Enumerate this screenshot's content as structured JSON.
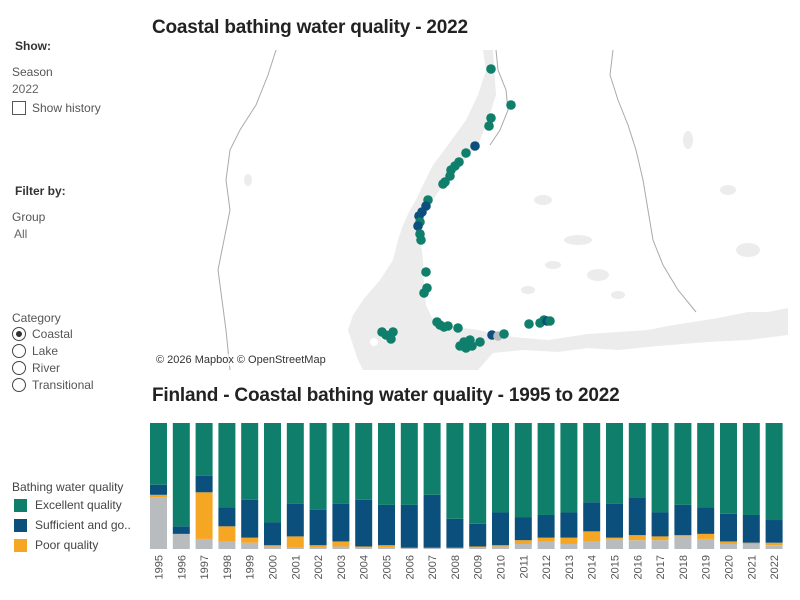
{
  "sidebar": {
    "show_header": "Show:",
    "season_label": "Season",
    "season_value": "2022",
    "show_history_label": "Show history",
    "filter_header": "Filter by:",
    "group_label": "Group",
    "group_value": "All",
    "category_label": "Category",
    "categories": [
      "Coastal",
      "Lake",
      "River",
      "Transitional"
    ],
    "selected_category": "Coastal",
    "legend_title": "Bathing water quality",
    "legend": [
      {
        "label": "Excellent quality",
        "color": "#0f7f6b"
      },
      {
        "label": "Sufficient and go..",
        "color": "#0b4f7c"
      },
      {
        "label": "Poor quality",
        "color": "#f5a623"
      }
    ]
  },
  "map": {
    "title": "Coastal bathing water quality - 2022",
    "attribution": "© 2026 Mapbox © OpenStreetMap",
    "colors": {
      "excellent": "#0f7f6b",
      "sufficient": "#0b4f7c",
      "unknown": "#b9bcbe",
      "land": "#ffffff",
      "water": "#ececec",
      "border": "#aaaaaa"
    }
  },
  "chart_data": {
    "type": "bar",
    "stacked": true,
    "normalized": true,
    "title": "Finland - Coastal bathing water quality - 1995 to 2022",
    "categories": [
      "1995",
      "1996",
      "1997",
      "1998",
      "1999",
      "2000",
      "2001",
      "2002",
      "2003",
      "2004",
      "2005",
      "2006",
      "2007",
      "2008",
      "2009",
      "2010",
      "2011",
      "2012",
      "2013",
      "2014",
      "2015",
      "2016",
      "2017",
      "2018",
      "2019",
      "2020",
      "2021",
      "2022"
    ],
    "series": [
      {
        "key": "other",
        "color": "#b9bcbe",
        "values": [
          41,
          12,
          8,
          6,
          5,
          2,
          1,
          1,
          2,
          1,
          1,
          1,
          1,
          1,
          1,
          2,
          4,
          6,
          4,
          6,
          8,
          7,
          7,
          10,
          8,
          4,
          4,
          3
        ]
      },
      {
        "key": "poor",
        "color": "#f5a623",
        "values": [
          2,
          0,
          37,
          12,
          4,
          1,
          9,
          2,
          4,
          1,
          2,
          0,
          0,
          0,
          1,
          1,
          3,
          3,
          5,
          8,
          1,
          4,
          3,
          1,
          4,
          2,
          1,
          2
        ]
      },
      {
        "key": "sufficient",
        "color": "#0b4f7c",
        "values": [
          8,
          6,
          13,
          15,
          30,
          18,
          26,
          28,
          30,
          37,
          32,
          34,
          42,
          23,
          18,
          26,
          18,
          18,
          20,
          23,
          27,
          30,
          19,
          24,
          21,
          22,
          22,
          18
        ]
      },
      {
        "key": "excellent",
        "color": "#0f7f6b",
        "values": [
          49,
          82,
          42,
          67,
          61,
          79,
          64,
          69,
          64,
          61,
          65,
          65,
          57,
          76,
          80,
          71,
          75,
          73,
          71,
          63,
          64,
          59,
          71,
          65,
          67,
          72,
          73,
          77
        ]
      }
    ],
    "ylim": [
      0,
      100
    ],
    "xlabel": "",
    "ylabel": ""
  }
}
